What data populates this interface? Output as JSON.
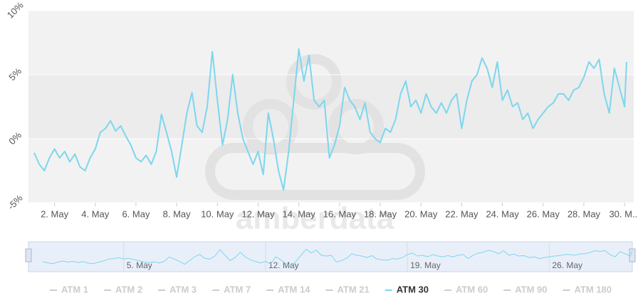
{
  "chart_data": {
    "type": "line",
    "watermark": "amberdata",
    "x": [
      1,
      1.25,
      1.5,
      1.75,
      2,
      2.25,
      2.5,
      2.75,
      3,
      3.25,
      3.5,
      3.75,
      4,
      4.25,
      4.5,
      4.75,
      5,
      5.25,
      5.5,
      5.75,
      6,
      6.25,
      6.5,
      6.75,
      7,
      7.25,
      7.5,
      7.75,
      8,
      8.25,
      8.5,
      8.75,
      9,
      9.25,
      9.5,
      9.75,
      10,
      10.25,
      10.5,
      10.75,
      11,
      11.25,
      11.5,
      11.75,
      12,
      12.25,
      12.5,
      12.75,
      13,
      13.25,
      13.5,
      13.75,
      14,
      14.25,
      14.5,
      14.75,
      15,
      15.25,
      15.5,
      15.75,
      16,
      16.25,
      16.5,
      16.75,
      17,
      17.25,
      17.5,
      17.75,
      18,
      18.25,
      18.5,
      18.75,
      19,
      19.25,
      19.5,
      19.75,
      20,
      20.25,
      20.5,
      20.75,
      21,
      21.25,
      21.5,
      21.75,
      22,
      22.25,
      22.5,
      22.75,
      23,
      23.25,
      23.5,
      23.75,
      24,
      24.25,
      24.5,
      24.75,
      25,
      25.25,
      25.5,
      25.75,
      26,
      26.25,
      26.5,
      26.75,
      27,
      27.25,
      27.5,
      27.75,
      28,
      28.25,
      28.5,
      28.75,
      29,
      29.25,
      29.5,
      29.75,
      30,
      30.1
    ],
    "series": [
      {
        "name": "ATM 1",
        "visible": false
      },
      {
        "name": "ATM 2",
        "visible": false
      },
      {
        "name": "ATM 3",
        "visible": false
      },
      {
        "name": "ATM 7",
        "visible": false
      },
      {
        "name": "ATM 14",
        "visible": false
      },
      {
        "name": "ATM 21",
        "visible": false
      },
      {
        "name": "ATM 30",
        "visible": true,
        "color": "#7dd6ee",
        "values": [
          -1.1,
          -2.0,
          -2.5,
          -1.5,
          -0.8,
          -1.5,
          -1.0,
          -1.8,
          -1.2,
          -2.2,
          -2.5,
          -1.5,
          -0.8,
          0.5,
          0.8,
          1.4,
          0.6,
          1.0,
          0.2,
          -0.5,
          -1.5,
          -1.8,
          -1.3,
          -2.0,
          -1.0,
          1.9,
          0.5,
          -1.0,
          -3.0,
          -0.5,
          2.0,
          3.6,
          1.0,
          0.5,
          2.5,
          6.8,
          3.0,
          -0.5,
          1.5,
          5.0,
          2.0,
          0,
          -1.0,
          -2.0,
          -1.0,
          -2.8,
          2.0,
          0,
          -2.5,
          -4.0,
          -1.0,
          3.0,
          7.0,
          4.5,
          6.5,
          3.0,
          2.5,
          3.0,
          -1.5,
          -0.5,
          1.0,
          4.0,
          3.0,
          2.5,
          1.5,
          2.8,
          0.5,
          0,
          -0.3,
          0.8,
          0.5,
          1.5,
          3.5,
          4.5,
          2.5,
          3.0,
          2.0,
          3.5,
          2.5,
          2.0,
          2.8,
          2.0,
          3.0,
          3.5,
          0.8,
          3.0,
          4.5,
          5.0,
          6.3,
          5.5,
          4.0,
          6.0,
          3.0,
          3.8,
          2.5,
          2.8,
          1.5,
          2.0,
          0.8,
          1.5,
          2.0,
          2.5,
          2.8,
          3.5,
          3.5,
          3.0,
          3.8,
          4.0,
          4.8,
          6.0,
          5.5,
          6.2,
          3.5,
          2.0,
          5.5,
          4.0,
          2.5,
          6.0
        ]
      },
      {
        "name": "ATM 60",
        "visible": false
      },
      {
        "name": "ATM 90",
        "visible": false
      },
      {
        "name": "ATM 180",
        "visible": false
      }
    ],
    "xlim": [
      0.72,
      30.45
    ],
    "xticks": [
      {
        "value": 2,
        "label": "2. May"
      },
      {
        "value": 4,
        "label": "4. May"
      },
      {
        "value": 6,
        "label": "6. May"
      },
      {
        "value": 8,
        "label": "8. May"
      },
      {
        "value": 10,
        "label": "10. May"
      },
      {
        "value": 12,
        "label": "12. May"
      },
      {
        "value": 14,
        "label": "14. May"
      },
      {
        "value": 16,
        "label": "16. May"
      },
      {
        "value": 18,
        "label": "18. May"
      },
      {
        "value": 20,
        "label": "20. May"
      },
      {
        "value": 22,
        "label": "22. May"
      },
      {
        "value": 24,
        "label": "24. May"
      },
      {
        "value": 26,
        "label": "26. May"
      },
      {
        "value": 28,
        "label": "28. May"
      },
      {
        "value": 30,
        "label": "30. M..."
      }
    ],
    "ylim": [
      -5,
      10
    ],
    "yticks": [
      {
        "value": -5,
        "label": "-5%"
      },
      {
        "value": 0,
        "label": "0%"
      },
      {
        "value": 5,
        "label": "5%"
      },
      {
        "value": 10,
        "label": "10%"
      }
    ],
    "grid": true,
    "navigator": {
      "xlim": [
        0.3,
        30.1
      ],
      "xticks": [
        {
          "value": 5,
          "label": "5. May"
        },
        {
          "value": 12,
          "label": "12. May"
        },
        {
          "value": 19,
          "label": "19. May"
        },
        {
          "value": 26,
          "label": "26. May"
        }
      ]
    }
  }
}
